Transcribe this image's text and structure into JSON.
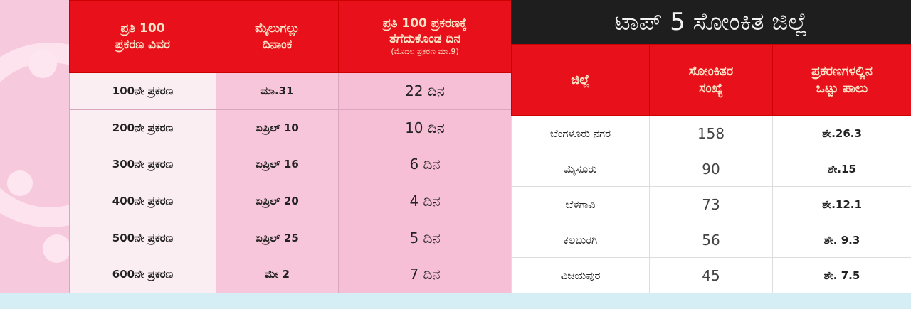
{
  "left_table": {
    "headers": [
      {
        "line1": "ಪ್ರತಿ 100",
        "line2": "ಪ್ರಕರಣ ವಿವರ"
      },
      {
        "line1": "ಮೈಲುಗಲ್ಲು",
        "line2": "ದಿನಾಂಕ"
      },
      {
        "line1": "ಪ್ರತಿ 100 ಪ್ರಕರಣಕ್ಕೆ",
        "line2": "ತೆಗೆದುಕೊಂಡ ದಿನ",
        "note": "(ಮೊದಲ ಪ್ರಕರಣ ಮಾ.9)"
      }
    ],
    "rows": [
      [
        "100ನೇ ಪ್ರಕರಣ",
        "ಮಾ.31",
        "22 ದಿನ"
      ],
      [
        "200ನೇ ಪ್ರಕರಣ",
        "ಏಪ್ರಿಲ್ 10",
        "10 ದಿನ"
      ],
      [
        "300ನೇ ಪ್ರಕರಣ",
        "ಏಪ್ರಿಲ್ 16",
        "6 ದಿನ"
      ],
      [
        "400ನೇ ಪ್ರಕರಣ",
        "ಏಪ್ರಿಲ್ 20",
        "4 ದಿನ"
      ],
      [
        "500ನೇ ಪ್ರಕರಣ",
        "ಏಪ್ರಿಲ್ 25",
        "5 ದಿನ"
      ],
      [
        "600ನೇ ಪ್ರಕರಣ",
        "ಮೇ 2",
        "7 ದಿನ"
      ]
    ]
  },
  "right_table": {
    "title": "ಟಾಪ್ 5 ಸೋಂಕಿತ ಜಿಲ್ಲೆ",
    "headers": [
      {
        "line1": "ಜಿಲ್ಲೆ",
        "line2": ""
      },
      {
        "line1": "ಸೋಂಕಿತರ",
        "line2": "ಸಂಖ್ಯೆ"
      },
      {
        "line1": "ಪ್ರಕರಣಗಳಲ್ಲಿನ",
        "line2": "ಒಟ್ಟು ಪಾಲು"
      }
    ],
    "rows": [
      [
        "ಬೆಂಗಳೂರು ನಗರ",
        "158",
        "ಶೇ.26.3"
      ],
      [
        "ಮೈಸೂರು",
        "90",
        "ಶೇ.15"
      ],
      [
        "ಬೆಳಗಾವಿ",
        "73",
        "ಶೇ.12.1"
      ],
      [
        "ಕಲಬುರಗಿ",
        "56",
        "ಶೇ. 9.3"
      ],
      [
        "ವಿಜಯಪುರ",
        "45",
        "ಶೇ. 7.5"
      ]
    ]
  },
  "colors": {
    "header_red": "#e8101a",
    "title_black": "#1e1e1e",
    "pink": "#f7c9dc"
  },
  "decoration": "virus-icon"
}
